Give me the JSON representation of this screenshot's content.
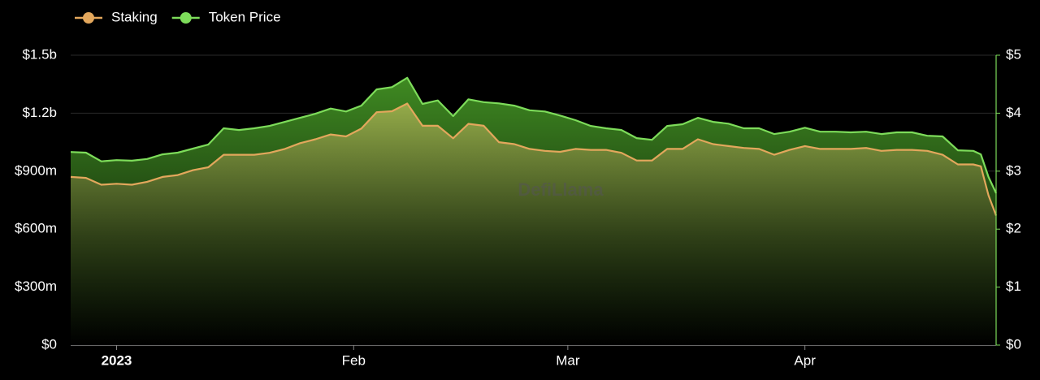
{
  "chart_data": {
    "type": "area",
    "watermark": "DefiLlama",
    "x": [
      -6,
      -4,
      -2,
      0,
      2,
      4,
      6,
      8,
      10,
      12,
      14,
      16,
      18,
      20,
      22,
      24,
      26,
      28,
      30,
      32,
      34,
      36,
      38,
      40,
      42,
      44,
      46,
      48,
      50,
      52,
      54,
      56,
      58,
      60,
      62,
      64,
      66,
      68,
      70,
      72,
      74,
      76,
      78,
      80,
      82,
      84,
      86,
      88,
      90,
      92,
      94,
      96,
      98,
      100,
      102,
      104,
      106,
      108,
      110,
      112,
      113,
      114,
      115
    ],
    "xlim": [
      -6,
      115
    ],
    "xticks": [
      {
        "value": 0,
        "label": "2023"
      },
      {
        "value": 31,
        "label": "Feb"
      },
      {
        "value": 59,
        "label": "Mar"
      },
      {
        "value": 90,
        "label": "Apr"
      }
    ],
    "ylim": [
      0,
      1500000000.0
    ],
    "yticks": [
      {
        "value": 0,
        "label": "$0"
      },
      {
        "value": 300000000.0,
        "label": "$300m"
      },
      {
        "value": 600000000.0,
        "label": "$600m"
      },
      {
        "value": 900000000.0,
        "label": "$900m"
      },
      {
        "value": 1200000000.0,
        "label": "$1.2b"
      },
      {
        "value": 1500000000.0,
        "label": "$1.5b"
      }
    ],
    "y2lim": [
      0,
      5
    ],
    "y2ticks": [
      {
        "value": 0,
        "label": "$0"
      },
      {
        "value": 1,
        "label": "$1"
      },
      {
        "value": 2,
        "label": "$2"
      },
      {
        "value": 3,
        "label": "$3"
      },
      {
        "value": 4,
        "label": "$4"
      },
      {
        "value": 5,
        "label": "$5"
      }
    ],
    "grid": true,
    "legend": "top-left",
    "series": [
      {
        "name": "Token Price",
        "color": "#7ddc5a",
        "axis": "y2",
        "values": [
          3.33,
          3.32,
          3.17,
          3.19,
          3.18,
          3.21,
          3.29,
          3.32,
          3.39,
          3.46,
          3.74,
          3.71,
          3.74,
          3.78,
          3.85,
          3.92,
          3.99,
          4.08,
          4.03,
          4.13,
          4.41,
          4.45,
          4.61,
          4.16,
          4.22,
          3.95,
          4.24,
          4.19,
          4.17,
          4.13,
          4.05,
          4.03,
          3.96,
          3.88,
          3.78,
          3.74,
          3.71,
          3.57,
          3.54,
          3.78,
          3.81,
          3.92,
          3.85,
          3.82,
          3.74,
          3.74,
          3.64,
          3.68,
          3.75,
          3.68,
          3.68,
          3.67,
          3.68,
          3.64,
          3.67,
          3.67,
          3.61,
          3.6,
          3.36,
          3.35,
          3.29,
          2.9,
          2.62
        ]
      },
      {
        "name": "Staking",
        "color": "#e3a75c",
        "values": [
          870000000.0,
          865000000.0,
          830000000.0,
          835000000.0,
          830000000.0,
          845000000.0,
          870000000.0,
          880000000.0,
          905000000.0,
          920000000.0,
          985000000.0,
          985000000.0,
          985000000.0,
          995000000.0,
          1015000000.0,
          1045000000.0,
          1065000000.0,
          1090000000.0,
          1080000000.0,
          1120000000.0,
          1205000000.0,
          1210000000.0,
          1250000000.0,
          1135000000.0,
          1135000000.0,
          1070000000.0,
          1145000000.0,
          1135000000.0,
          1050000000.0,
          1040000000.0,
          1015000000.0,
          1005000000.0,
          1000000000.0,
          1015000000.0,
          1010000000.0,
          1010000000.0,
          995000000.0,
          955000000.0,
          955000000.0,
          1015000000.0,
          1015000000.0,
          1065000000.0,
          1040000000.0,
          1030000000.0,
          1020000000.0,
          1015000000.0,
          985000000.0,
          1010000000.0,
          1030000000.0,
          1015000000.0,
          1015000000.0,
          1015000000.0,
          1020000000.0,
          1005000000.0,
          1010000000.0,
          1010000000.0,
          1005000000.0,
          985000000.0,
          935000000.0,
          935000000.0,
          925000000.0,
          775000000.0,
          670000000.0
        ]
      }
    ]
  }
}
